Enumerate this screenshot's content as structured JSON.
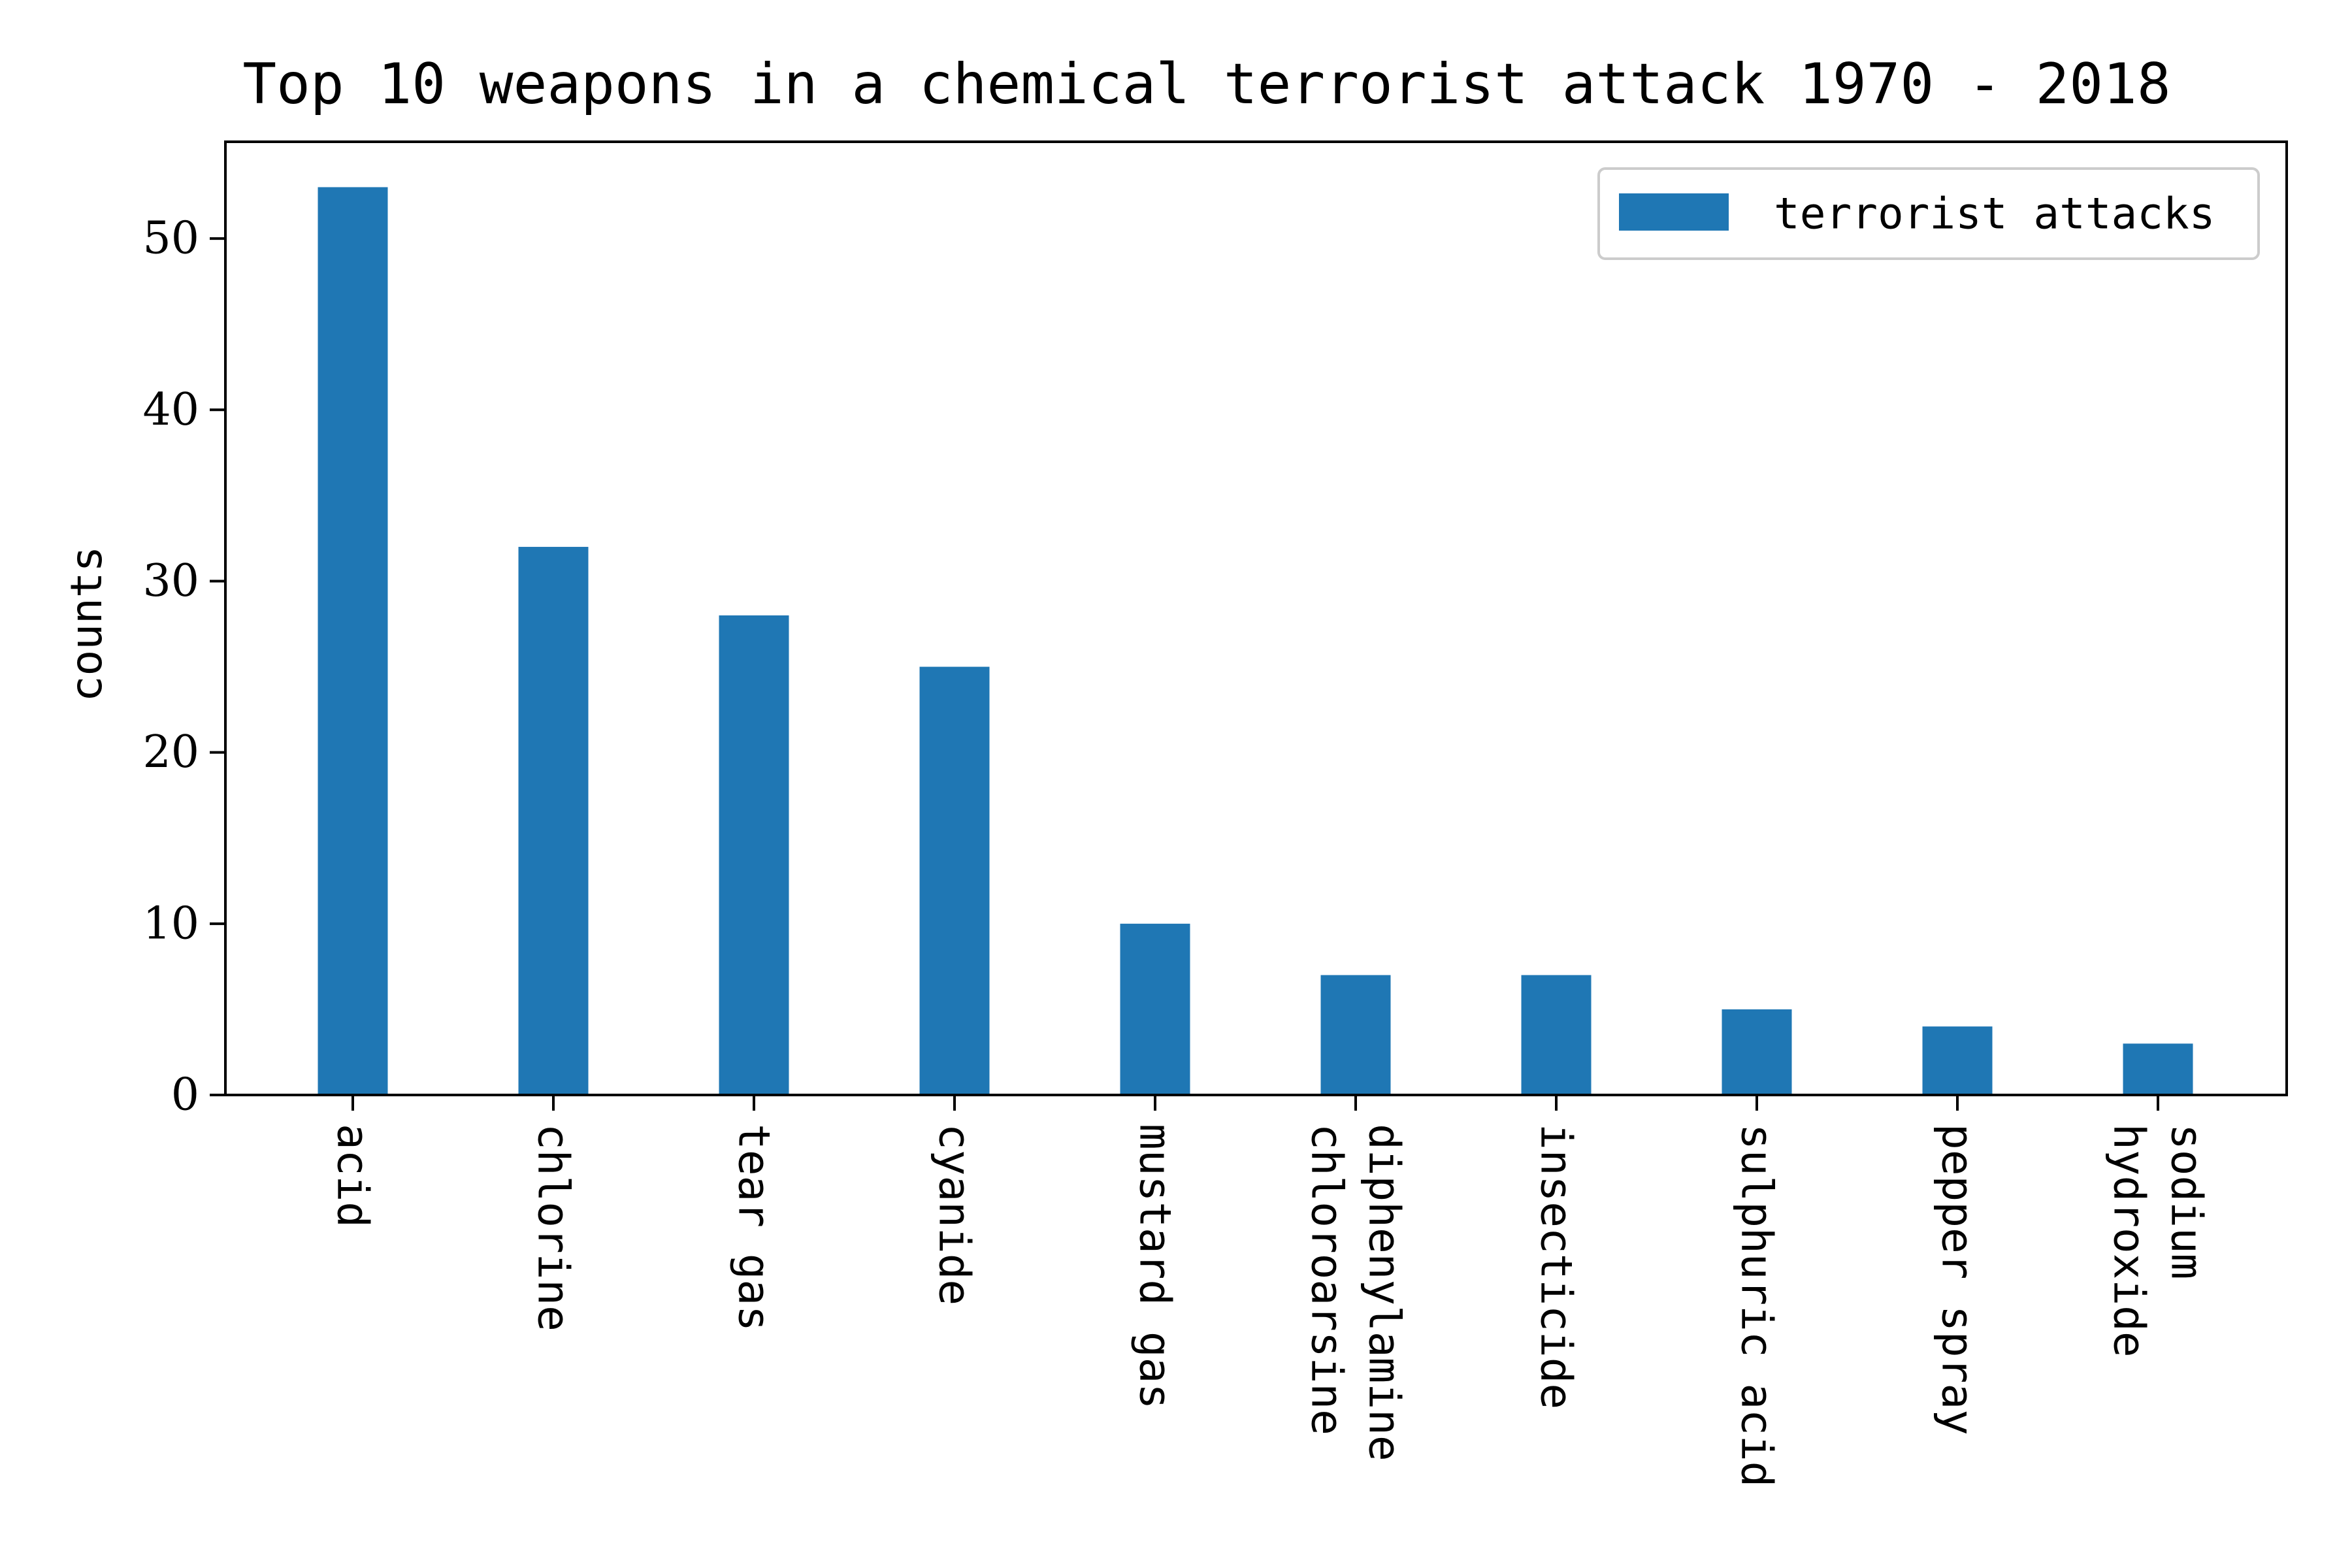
{
  "chart_data": {
    "type": "bar",
    "title": "Top 10 weapons in a chemical terrorist attack 1970 - 2018",
    "xlabel": "",
    "ylabel": "counts",
    "categories": [
      [
        "acid"
      ],
      [
        "chlorine"
      ],
      [
        "tear gas"
      ],
      [
        "cyanide"
      ],
      [
        "mustard gas"
      ],
      [
        "diphenylamine",
        "chloroarsine"
      ],
      [
        "insecticide"
      ],
      [
        "sulphuric acid"
      ],
      [
        "pepper spray"
      ],
      [
        "sodium",
        "hydroxide"
      ]
    ],
    "series": [
      {
        "name": "terrorist attacks",
        "color": "#1f77b4",
        "values": [
          53,
          32,
          28,
          25,
          10,
          7,
          7,
          5,
          4,
          3
        ]
      }
    ],
    "ylim": [
      0,
      55.65
    ],
    "yticks": [
      0,
      10,
      20,
      30,
      40,
      50
    ],
    "grid": false,
    "legend_position": "top-right",
    "category_label_rotation": 90
  }
}
